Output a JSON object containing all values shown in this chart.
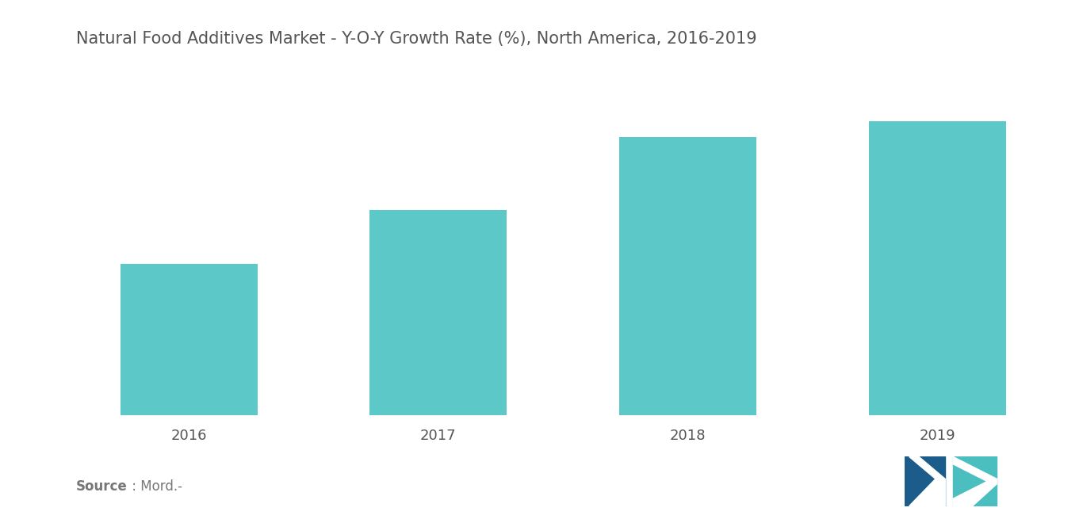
{
  "title": "Natural Food Additives Market - Y-O-Y Growth Rate (%), North America, 2016-2019",
  "categories": [
    "2016",
    "2017",
    "2018",
    "2019"
  ],
  "values": [
    4.8,
    6.5,
    8.8,
    9.3
  ],
  "bar_color": "#5DC8C8",
  "background_color": "#ffffff",
  "title_color": "#555555",
  "tick_color": "#555555",
  "title_fontsize": 15,
  "tick_fontsize": 13,
  "source_bold": "Source",
  "source_regular": " : Mord.-",
  "source_fontsize": 12,
  "ylim": [
    0,
    11
  ],
  "bar_width": 0.55,
  "figsize": [
    13.66,
    6.55
  ],
  "dpi": 100,
  "logo_navy": "#1B5C8A",
  "logo_teal": "#4BBFBF"
}
